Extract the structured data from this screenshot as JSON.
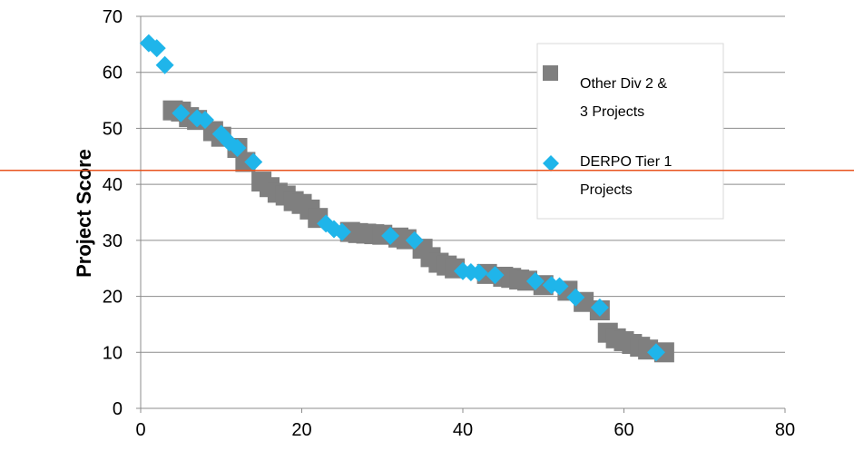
{
  "chart_data": {
    "type": "scatter",
    "title": "",
    "xlabel": "",
    "ylabel": "Project Score",
    "xlim": [
      0,
      80
    ],
    "ylim": [
      0,
      70
    ],
    "x_ticks": [
      0,
      20,
      40,
      60,
      80
    ],
    "y_ticks": [
      0,
      10,
      20,
      30,
      40,
      50,
      60,
      70
    ],
    "grid": "horizontal",
    "legend_position": "right",
    "threshold_line": {
      "y": 42.5,
      "color": "#e8531f"
    },
    "series": [
      {
        "name": "Other Div 2 & 3 Projects",
        "legend_lines": [
          "Other Div 2 &",
          "3 Projects"
        ],
        "marker": "square",
        "color": "#7f7f7f",
        "points": [
          [
            4,
            53.2
          ],
          [
            5,
            53
          ],
          [
            6,
            52
          ],
          [
            7,
            51.5
          ],
          [
            9,
            49.5
          ],
          [
            10,
            48.5
          ],
          [
            12,
            46.5
          ],
          [
            13,
            44
          ],
          [
            15,
            40.5
          ],
          [
            16,
            39.5
          ],
          [
            17,
            38.5
          ],
          [
            18,
            38
          ],
          [
            19,
            37
          ],
          [
            20,
            36.5
          ],
          [
            21,
            35.5
          ],
          [
            22,
            34
          ],
          [
            26,
            31.5
          ],
          [
            27,
            31.3
          ],
          [
            28,
            31.2
          ],
          [
            29,
            31.1
          ],
          [
            30,
            31
          ],
          [
            32,
            30.5
          ],
          [
            33,
            30.2
          ],
          [
            35,
            28.5
          ],
          [
            36,
            27
          ],
          [
            37,
            26
          ],
          [
            38,
            25.5
          ],
          [
            39,
            25
          ],
          [
            43,
            24
          ],
          [
            45,
            23.5
          ],
          [
            46,
            23.3
          ],
          [
            47,
            23
          ],
          [
            48,
            22.8
          ],
          [
            50,
            22
          ],
          [
            53,
            21
          ],
          [
            55,
            19
          ],
          [
            57,
            17.5
          ],
          [
            58,
            13.5
          ],
          [
            59,
            12.5
          ],
          [
            60,
            12
          ],
          [
            61,
            11.5
          ],
          [
            62,
            11
          ],
          [
            63,
            10.5
          ],
          [
            65,
            10
          ]
        ]
      },
      {
        "name": "DERPO Tier 1 Projects",
        "legend_lines": [
          "DERPO Tier 1",
          "Projects"
        ],
        "marker": "diamond",
        "color": "#1fb5ea",
        "points": [
          [
            1,
            65.2
          ],
          [
            2,
            64.3
          ],
          [
            3,
            61.3
          ],
          [
            5,
            52.7
          ],
          [
            7,
            51.8
          ],
          [
            8,
            51.5
          ],
          [
            10,
            49
          ],
          [
            11,
            47.5
          ],
          [
            12,
            46.5
          ],
          [
            14,
            44
          ],
          [
            23,
            33
          ],
          [
            24,
            32
          ],
          [
            25,
            31.5
          ],
          [
            31,
            30.8
          ],
          [
            34,
            30
          ],
          [
            40,
            24.5
          ],
          [
            41,
            24.3
          ],
          [
            42,
            24.2
          ],
          [
            44,
            23.8
          ],
          [
            49,
            22.7
          ],
          [
            51,
            22
          ],
          [
            52,
            21.8
          ],
          [
            54,
            19.8
          ],
          [
            57,
            18
          ],
          [
            64,
            10
          ]
        ]
      }
    ]
  }
}
